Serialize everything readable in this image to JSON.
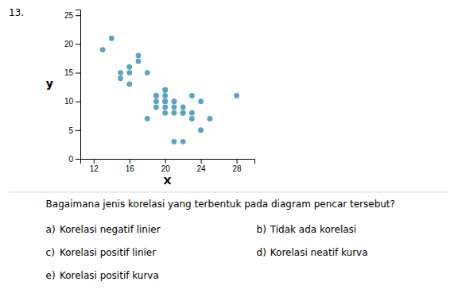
{
  "chart_data": {
    "type": "scatter",
    "x": [
      13,
      14,
      15,
      15,
      16,
      16,
      16,
      17,
      17,
      18,
      18,
      19,
      19,
      19,
      19,
      20,
      20,
      20,
      20,
      20,
      20,
      20,
      21,
      21,
      21,
      21,
      21,
      22,
      22,
      22,
      22,
      23,
      23,
      23,
      24,
      24,
      24,
      25,
      28
    ],
    "values": [
      19,
      21,
      15,
      14,
      15,
      16,
      13,
      18,
      17,
      15,
      7,
      11,
      11,
      10,
      9,
      12,
      12,
      11,
      10,
      10,
      9,
      8,
      10,
      10,
      9,
      8,
      3,
      9,
      8,
      8,
      3,
      11,
      8,
      7,
      10,
      5,
      5,
      7,
      11
    ],
    "color": "#5BA3C0",
    "xlim": [
      10.5,
      30
    ],
    "ylim": [
      0,
      26
    ],
    "xticks": [
      12,
      16,
      20,
      24,
      28
    ],
    "yticks": [
      0,
      5,
      10,
      15,
      20,
      25
    ],
    "xlabel": "X",
    "ylabel": "y",
    "grid": false,
    "annotations": {
      "number": "13.",
      "question": "Bagaimana jenis korelasi yang terbentuk pada diagram pencar tersebut?",
      "options": [
        [
          "a)",
          "Korelasi negatif linier",
          "b)",
          "Tidak ada korelasi"
        ],
        [
          "c)",
          "Korelasi positif linier",
          "d)",
          "Korelasi neatif kurva"
        ],
        [
          "e)",
          "Korelasi positif kurva"
        ]
      ]
    }
  }
}
